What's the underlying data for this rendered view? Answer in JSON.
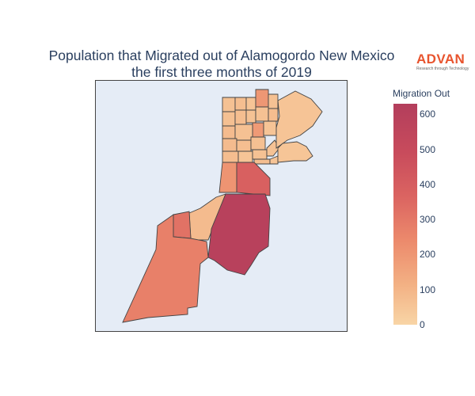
{
  "title": {
    "line1": "Population that Migrated out of Alamogordo New Mexico",
    "line2": "the first three months of 2019"
  },
  "logo": {
    "word": "ADVAN",
    "tagline": "Research through Technology",
    "color": "#e8542e"
  },
  "colorbar": {
    "title": "Migration Out",
    "min": 0,
    "max": 630,
    "ticks": [
      "600",
      "500",
      "400",
      "300",
      "200",
      "100",
      "0"
    ],
    "colorscale": [
      "#f8d5a6",
      "#f3b184",
      "#ec8a6c",
      "#db6461",
      "#c84b5c",
      "#b33e5c"
    ]
  },
  "map": {
    "background": "#e5ecf6",
    "border_color": "#444444"
  },
  "chart_data": {
    "type": "choropleth",
    "value_label": "Migration Out",
    "regions": [
      {
        "id": "n1",
        "value": 70
      },
      {
        "id": "n2",
        "value": 80
      },
      {
        "id": "n3",
        "value": 60
      },
      {
        "id": "n4",
        "value": 210
      },
      {
        "id": "n5",
        "value": 70
      },
      {
        "id": "n6",
        "value": 75
      },
      {
        "id": "n7",
        "value": 80
      },
      {
        "id": "n8",
        "value": 65
      },
      {
        "id": "n9",
        "value": 70
      },
      {
        "id": "n10",
        "value": 85
      },
      {
        "id": "n11",
        "value": 90
      },
      {
        "id": "n12",
        "value": 200
      },
      {
        "id": "n13",
        "value": 70
      },
      {
        "id": "n14",
        "value": 60
      },
      {
        "id": "n15",
        "value": 90
      },
      {
        "id": "n16",
        "value": 80
      },
      {
        "id": "n17",
        "value": 75
      },
      {
        "id": "n18",
        "value": 85
      },
      {
        "id": "n19",
        "value": 60
      },
      {
        "id": "n20",
        "value": 70
      },
      {
        "id": "n21",
        "value": 80
      },
      {
        "id": "n22",
        "value": 60
      },
      {
        "id": "n23",
        "value": 65
      },
      {
        "id": "n24",
        "value": 65
      },
      {
        "id": "ne-lobe",
        "value": 60
      },
      {
        "id": "e-lobe",
        "value": 55
      },
      {
        "id": "strip-w",
        "value": 220
      },
      {
        "id": "strip-e",
        "value": 400
      },
      {
        "id": "wedge",
        "value": 90
      },
      {
        "id": "big-south",
        "value": 600
      },
      {
        "id": "small-w",
        "value": 330
      },
      {
        "id": "sw",
        "value": 285
      }
    ]
  }
}
